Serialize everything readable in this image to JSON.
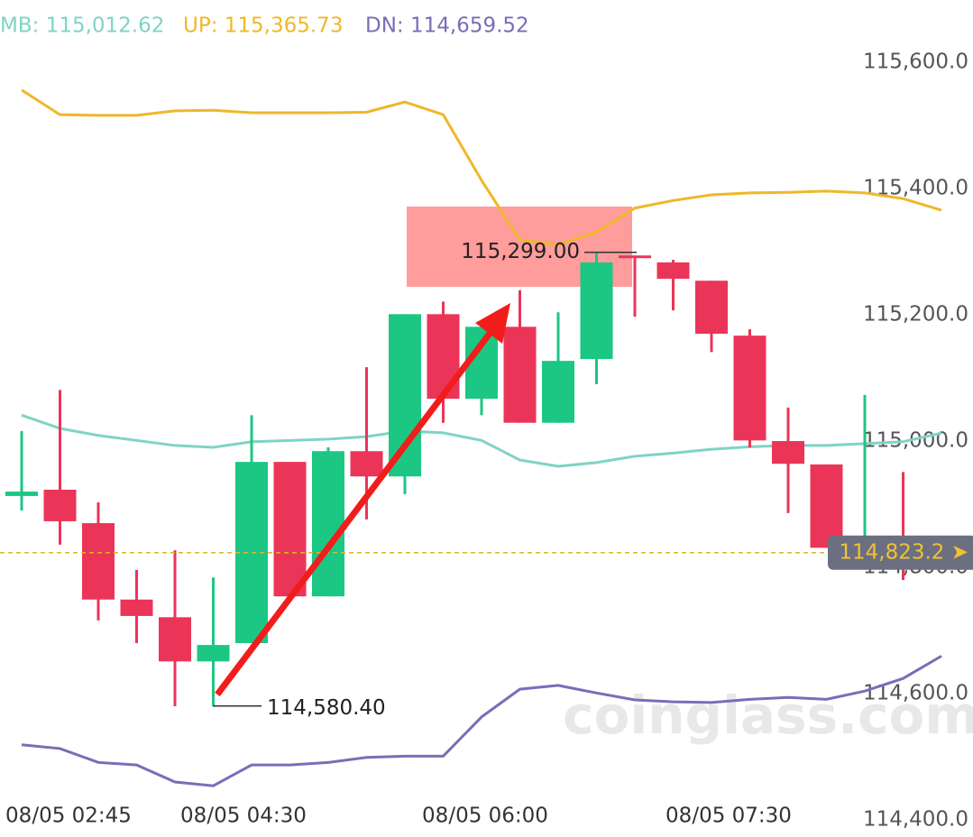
{
  "chart_data": {
    "type": "candlestick",
    "legend": [
      {
        "name": "MB: 115,012.62",
        "color": "#7fd4c4"
      },
      {
        "name": "UP: 115,365.73",
        "color": "#efb82a"
      },
      {
        "name": "DN: 114,659.52",
        "color": "#7c6cb8"
      }
    ],
    "open": [
      114913,
      114923,
      114870,
      114749,
      114721,
      114651,
      114680,
      114967,
      114754,
      114984,
      114944,
      115201,
      115067,
      115181,
      115029,
      115130,
      115294,
      115283,
      115254,
      115167,
      115000,
      114963,
      114831,
      114831
    ],
    "high": [
      115016,
      115081,
      114903,
      114796,
      114827,
      114784,
      115041,
      114967,
      114990,
      115117,
      115201,
      115221,
      115181,
      115239,
      115204,
      115299,
      115294,
      115287,
      115254,
      115177,
      115053,
      114963,
      115073,
      114951
    ],
    "low": [
      114890,
      114836,
      114716,
      114680,
      114580,
      114580.4,
      114680,
      114754,
      114754,
      114876,
      114916,
      115029,
      115041,
      115029,
      115029,
      115090,
      115197,
      115207,
      115141,
      114990,
      114886,
      114831,
      114831,
      114780
    ],
    "close": [
      114920,
      114873,
      114749,
      114723,
      114651,
      114677,
      114967,
      114754,
      114984,
      114944,
      115201,
      115067,
      115181,
      115029,
      115127,
      115283,
      115290,
      115257,
      115170,
      115001,
      114964,
      114831,
      114840,
      114823.2
    ],
    "up_color": "#1cc683",
    "down_color": "#eb3558",
    "series": [
      {
        "name": "MB",
        "color": "#7fd4c4",
        "values": [
          115041,
          115020,
          115009,
          115001,
          114993,
          114990,
          114999,
          115001,
          115003,
          115007,
          115016,
          115013,
          115001,
          114970,
          114960,
          114966,
          114976,
          114981,
          114987,
          114991,
          114993,
          114993,
          114996,
          114999,
          115012.62
        ]
      },
      {
        "name": "UP",
        "color": "#efb82a",
        "values": [
          115556,
          115517,
          115516,
          115516,
          115523,
          115524,
          115520,
          115520,
          115520,
          115521,
          115537,
          115517,
          115413,
          115319,
          115311,
          115331,
          115369,
          115381,
          115390,
          115393,
          115394,
          115396,
          115393,
          115384,
          115365.73
        ]
      },
      {
        "name": "DN",
        "color": "#7c6cb8",
        "values": [
          114519,
          114513,
          114491,
          114487,
          114460,
          114454,
          114487,
          114487,
          114491,
          114499,
          114501,
          114501,
          114563,
          114607,
          114613,
          114601,
          114590,
          114587,
          114586,
          114591,
          114594,
          114591,
          114604,
          114624,
          114659.52
        ]
      }
    ],
    "ylim": [
      114372.9,
      115698.6
    ],
    "yticks": [
      {
        "value": 115600,
        "label": "115,600.0"
      },
      {
        "value": 115400,
        "label": "115,400.0"
      },
      {
        "value": 115200,
        "label": "115,200.0"
      },
      {
        "value": 115000,
        "label": "115,000.0"
      },
      {
        "value": 114800,
        "label": "114,800.0"
      },
      {
        "value": 114600,
        "label": "114,600.0"
      },
      {
        "value": 114400,
        "label": "114,400.0"
      }
    ],
    "x_labels": [
      "08/05 02:45",
      "08/05 04:30",
      "08/05 06:00",
      "08/05 07:30"
    ],
    "high_marker": {
      "value": 115299,
      "label": "115,299.00"
    },
    "low_marker": {
      "value": 114580.4,
      "label": "114,580.40"
    },
    "last_price": {
      "value": 114823.2,
      "label": "114,823.2 ➤"
    },
    "watermark": "coinglass.com"
  }
}
